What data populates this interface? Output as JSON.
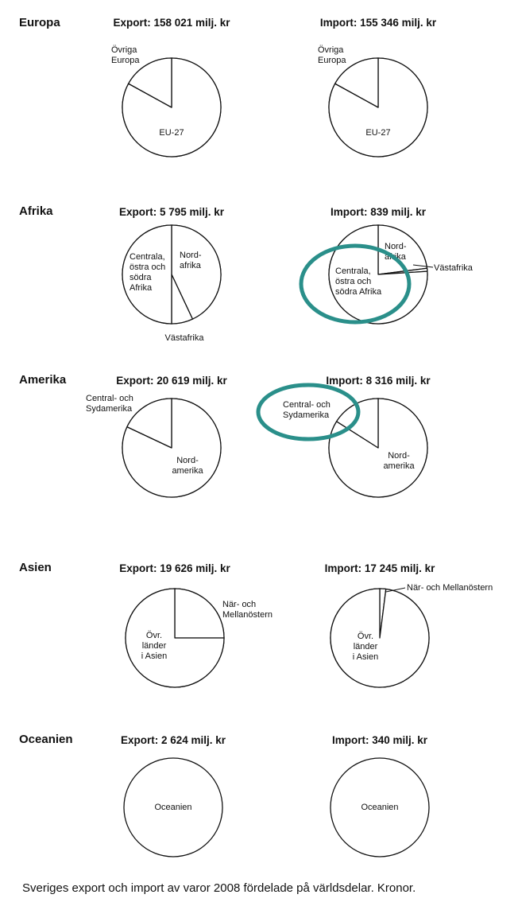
{
  "chart_data": [
    {
      "type": "pie",
      "region": "Europa",
      "title": "Export: 158 021 milj. kr",
      "slices": [
        {
          "name": "EU-27",
          "value": 0.83
        },
        {
          "name": "Övriga Europa",
          "value": 0.17
        }
      ]
    },
    {
      "type": "pie",
      "region": "",
      "title": "Import: 155 346 milj. kr",
      "slices": [
        {
          "name": "EU-27",
          "value": 0.83
        },
        {
          "name": "Övriga Europa",
          "value": 0.17
        }
      ]
    },
    {
      "type": "pie",
      "region": "Afrika",
      "title": "Export: 5 795 milj. kr",
      "slices": [
        {
          "name": "Nord- afrika",
          "value": 0.43
        },
        {
          "name": "Västafrika",
          "value": 0.07
        },
        {
          "name": "Centrala, östra och södra Afrika",
          "value": 0.5
        }
      ]
    },
    {
      "type": "pie",
      "region": "",
      "title": "Import: 839 milj. kr",
      "slices": [
        {
          "name": "Nord- afrika",
          "value": 0.23
        },
        {
          "name": "Västafrika",
          "value": 0.01
        },
        {
          "name": "Centrala, östra och södra Afrika",
          "value": 0.76
        }
      ]
    },
    {
      "type": "pie",
      "region": "Amerika",
      "title": "Export: 20 619 milj. kr",
      "slices": [
        {
          "name": "Nord- amerika",
          "value": 0.82
        },
        {
          "name": "Central- och Sydamerika",
          "value": 0.18
        }
      ]
    },
    {
      "type": "pie",
      "region": "",
      "title": "Import: 8 316 milj. kr",
      "slices": [
        {
          "name": "Nord- amerika",
          "value": 0.84
        },
        {
          "name": "Central- och Sydamerika",
          "value": 0.16
        }
      ]
    },
    {
      "type": "pie",
      "region": "Asien",
      "title": "Export: 19 626 milj. kr",
      "slices": [
        {
          "name": "När- och Mellanöstern",
          "value": 0.25
        },
        {
          "name": "Övr. länder i Asien",
          "value": 0.75
        }
      ]
    },
    {
      "type": "pie",
      "region": "",
      "title": "Import: 17 245 milj. kr",
      "slices": [
        {
          "name": "När- och Mellanöstern",
          "value": 0.02
        },
        {
          "name": "Övr. länder i Asien",
          "value": 0.98
        }
      ]
    },
    {
      "type": "pie",
      "region": "Oceanien",
      "title": "Export: 2 624 milj. kr",
      "slices": [
        {
          "name": "Oceanien",
          "value": 1.0
        }
      ]
    },
    {
      "type": "pie",
      "region": "",
      "title": "Import: 340 milj. kr",
      "slices": [
        {
          "name": "Oceanien",
          "value": 1.0
        }
      ]
    }
  ],
  "caption": "Sveriges export och import av varor 2008 fördelade på världsdelar.  Kronor.",
  "colors": {
    "stroke": "#111111",
    "highlight": "#2a8f8a"
  }
}
